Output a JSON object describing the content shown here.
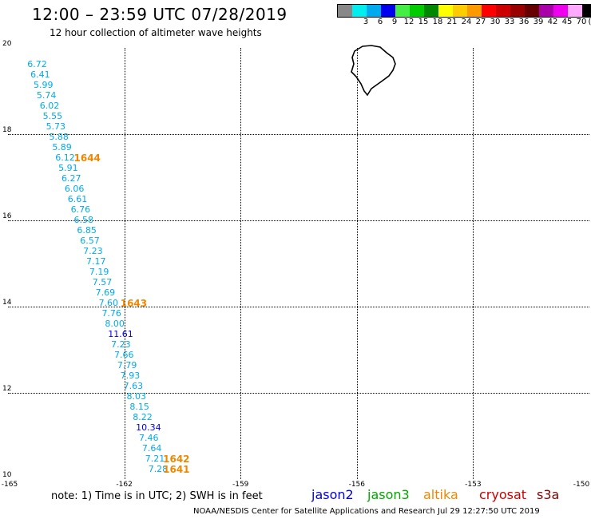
{
  "header": {
    "title": "12:00 – 23:59 UTC 07/28/2019",
    "subtitle": "12 hour collection of altimeter wave heights"
  },
  "colorbar": {
    "unit": "(ft)",
    "swatches": [
      {
        "label": "",
        "color": "#888888"
      },
      {
        "label": "3",
        "color": "#00eeee"
      },
      {
        "label": "6",
        "color": "#00aaee"
      },
      {
        "label": "9",
        "color": "#0000ee"
      },
      {
        "label": "12",
        "color": "#44ee44"
      },
      {
        "label": "15",
        "color": "#00cc00"
      },
      {
        "label": "18",
        "color": "#008800"
      },
      {
        "label": "21",
        "color": "#ffff00"
      },
      {
        "label": "24",
        "color": "#ffcc00"
      },
      {
        "label": "27",
        "color": "#ff9900"
      },
      {
        "label": "30",
        "color": "#ff0000"
      },
      {
        "label": "33",
        "color": "#cc0000"
      },
      {
        "label": "36",
        "color": "#990000"
      },
      {
        "label": "39",
        "color": "#660000"
      },
      {
        "label": "42",
        "color": "#aa00aa"
      },
      {
        "label": "45",
        "color": "#ee00ee"
      },
      {
        "label": "70",
        "color": "#ffaaff"
      },
      {
        "label": "",
        "color": "#000000"
      }
    ]
  },
  "axes": {
    "lat_ticks": [
      "20",
      "18",
      "16",
      "14",
      "12",
      "10"
    ],
    "lon_ticks": [
      "-165",
      "-162",
      "-159",
      "-156",
      "-153",
      "-150"
    ],
    "lon_range": [
      -165,
      -150
    ],
    "lat_range": [
      10,
      20
    ]
  },
  "wave_heights": {
    "points": [
      {
        "v": "6.72",
        "lon": -164.5,
        "lat": 19.61,
        "color": "#00aaee"
      },
      {
        "v": "6.41",
        "lon": -164.42,
        "lat": 19.37,
        "color": "#00aaee"
      },
      {
        "v": "5.99",
        "lon": -164.34,
        "lat": 19.13,
        "color": "#00aaee"
      },
      {
        "v": "5.74",
        "lon": -164.26,
        "lat": 18.89,
        "color": "#00aaee"
      },
      {
        "v": "6.02",
        "lon": -164.18,
        "lat": 18.65,
        "color": "#00aaee"
      },
      {
        "v": "5.55",
        "lon": -164.1,
        "lat": 18.41,
        "color": "#00aaee"
      },
      {
        "v": "5.73",
        "lon": -164.02,
        "lat": 18.17,
        "color": "#00aaee"
      },
      {
        "v": "5.88",
        "lon": -163.94,
        "lat": 17.93,
        "color": "#00aaee"
      },
      {
        "v": "5.89",
        "lon": -163.86,
        "lat": 17.69,
        "color": "#00aaee"
      },
      {
        "v": "6.12",
        "lon": -163.78,
        "lat": 17.45,
        "color": "#00aaee"
      },
      {
        "v": "5.91",
        "lon": -163.7,
        "lat": 17.2,
        "color": "#00aaee"
      },
      {
        "v": "6.27",
        "lon": -163.62,
        "lat": 16.96,
        "color": "#00aaee"
      },
      {
        "v": "6.06",
        "lon": -163.54,
        "lat": 16.72,
        "color": "#00aaee"
      },
      {
        "v": "6.61",
        "lon": -163.46,
        "lat": 16.48,
        "color": "#00aaee"
      },
      {
        "v": "6.76",
        "lon": -163.38,
        "lat": 16.24,
        "color": "#00aaee"
      },
      {
        "v": "6.58",
        "lon": -163.3,
        "lat": 16.0,
        "color": "#00aaee"
      },
      {
        "v": "6.85",
        "lon": -163.22,
        "lat": 15.76,
        "color": "#00aaee"
      },
      {
        "v": "6.57",
        "lon": -163.14,
        "lat": 15.52,
        "color": "#00aaee"
      },
      {
        "v": "7.23",
        "lon": -163.06,
        "lat": 15.28,
        "color": "#00aaee"
      },
      {
        "v": "7.17",
        "lon": -162.98,
        "lat": 15.04,
        "color": "#00aaee"
      },
      {
        "v": "7.19",
        "lon": -162.9,
        "lat": 14.8,
        "color": "#00aaee"
      },
      {
        "v": "7.57",
        "lon": -162.82,
        "lat": 14.56,
        "color": "#00aaee"
      },
      {
        "v": "7.69",
        "lon": -162.74,
        "lat": 14.31,
        "color": "#00aaee"
      },
      {
        "v": "7.60",
        "lon": -162.66,
        "lat": 14.07,
        "color": "#00aaee"
      },
      {
        "v": "7.76",
        "lon": -162.58,
        "lat": 13.83,
        "color": "#00aaee"
      },
      {
        "v": "8.00",
        "lon": -162.5,
        "lat": 13.59,
        "color": "#00aaee"
      },
      {
        "v": "11.61",
        "lon": -162.42,
        "lat": 13.35,
        "color": "#0000ee"
      },
      {
        "v": "7.23",
        "lon": -162.34,
        "lat": 13.11,
        "color": "#00aaee"
      },
      {
        "v": "7.66",
        "lon": -162.26,
        "lat": 12.87,
        "color": "#00aaee"
      },
      {
        "v": "7.79",
        "lon": -162.18,
        "lat": 12.63,
        "color": "#00aaee"
      },
      {
        "v": "7.93",
        "lon": -162.1,
        "lat": 12.39,
        "color": "#00aaee"
      },
      {
        "v": "7.63",
        "lon": -162.02,
        "lat": 12.15,
        "color": "#00aaee"
      },
      {
        "v": "8.03",
        "lon": -161.94,
        "lat": 11.91,
        "color": "#00aaee"
      },
      {
        "v": "8.15",
        "lon": -161.86,
        "lat": 11.67,
        "color": "#00aaee"
      },
      {
        "v": "8.22",
        "lon": -161.78,
        "lat": 11.43,
        "color": "#00aaee"
      },
      {
        "v": "10.34",
        "lon": -161.7,
        "lat": 11.19,
        "color": "#0000ee"
      },
      {
        "v": "7.46",
        "lon": -161.62,
        "lat": 10.94,
        "color": "#00aaee"
      },
      {
        "v": "7.64",
        "lon": -161.54,
        "lat": 10.7,
        "color": "#00aaee"
      },
      {
        "v": "7.21",
        "lon": -161.46,
        "lat": 10.46,
        "color": "#00aaee"
      },
      {
        "v": "7.28",
        "lon": -161.38,
        "lat": 10.22,
        "color": "#00aaee"
      }
    ],
    "times": [
      {
        "t": "1644",
        "lon": -163.3,
        "lat": 17.45
      },
      {
        "t": "1643",
        "lon": -162.1,
        "lat": 14.07
      },
      {
        "t": "1642",
        "lon": -161.0,
        "lat": 10.46
      },
      {
        "t": "1641",
        "lon": -161.0,
        "lat": 10.22
      }
    ],
    "time_color": "#ee8800"
  },
  "footer": {
    "note": "note: 1) Time is in UTC; 2) SWH is in feet",
    "legend": [
      {
        "name": "jason2",
        "color": "#0000ee"
      },
      {
        "name": "jason3",
        "color": "#00aa00"
      },
      {
        "name": "altika",
        "color": "#ee8800"
      },
      {
        "name": "cryosat",
        "color": "#cc0000"
      },
      {
        "name": "s3a",
        "color": "#880000"
      }
    ],
    "credit": "NOAA/NESDIS Center for Satellite Applications and Research    Jul 29 12:27:50 UTC 2019"
  }
}
